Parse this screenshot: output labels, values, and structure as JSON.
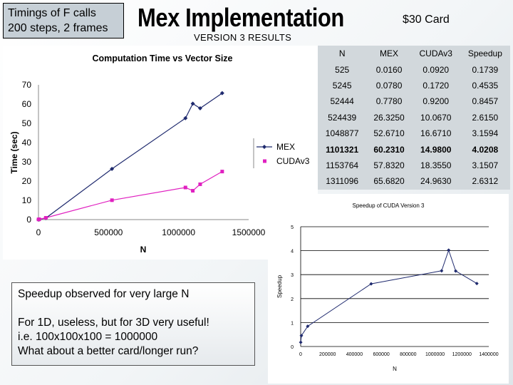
{
  "slide": {
    "top_box_line1": "Timings of F calls",
    "top_box_line2": "200 steps, 2 frames",
    "title": "Mex Implementation",
    "card_label": "$30 Card",
    "version_label": "VERSION 3 RESULTS",
    "note_line1": "Speedup observed for very large N",
    "note_line3": "For 1D, useless, but for 3D very useful!",
    "note_line4": "i.e. 100x100x100 = 1000000",
    "note_line5": "What about a better card/longer run?"
  },
  "table": {
    "headers": [
      "N",
      "MEX",
      "CUDAv3",
      "Speedup"
    ],
    "rows": [
      [
        "525",
        "0.0160",
        "0.0920",
        "0.1739"
      ],
      [
        "5245",
        "0.0780",
        "0.1720",
        "0.4535"
      ],
      [
        "52444",
        "0.7780",
        "0.9200",
        "0.8457"
      ],
      [
        "524439",
        "26.3250",
        "10.0670",
        "2.6150"
      ],
      [
        "1048877",
        "52.6710",
        "16.6710",
        "3.1594"
      ],
      [
        "1101321",
        "60.2310",
        "14.9800",
        "4.0208"
      ],
      [
        "1153764",
        "57.8320",
        "18.3550",
        "3.1507"
      ],
      [
        "1311096",
        "65.6820",
        "24.9630",
        "2.6312"
      ]
    ],
    "bold_row": 5
  },
  "chart_data": [
    {
      "type": "line",
      "title": "Computation Time vs Vector Size",
      "xlabel": "N",
      "ylabel": "Time (sec)",
      "xlim": [
        0,
        1500000
      ],
      "ylim": [
        0,
        70
      ],
      "xticks": [
        0,
        500000,
        1000000,
        1500000
      ],
      "xtick_labels": [
        "0",
        "500000",
        "1000000",
        "1500000"
      ],
      "yticks": [
        0,
        10,
        20,
        30,
        40,
        50,
        60,
        70
      ],
      "legend_position": "right",
      "series": [
        {
          "name": "MEX",
          "color": "#1f2a6e",
          "marker": "diamond",
          "x": [
            525,
            5245,
            52444,
            524439,
            1048877,
            1101321,
            1153764,
            1311096
          ],
          "y": [
            0.016,
            0.078,
            0.778,
            26.325,
            52.671,
            60.231,
            57.832,
            65.682
          ]
        },
        {
          "name": "CUDAv3",
          "color": "#e020c0",
          "marker": "square",
          "x": [
            525,
            5245,
            52444,
            524439,
            1048877,
            1101321,
            1153764,
            1311096
          ],
          "y": [
            0.092,
            0.172,
            0.92,
            10.067,
            16.671,
            14.98,
            18.355,
            24.963
          ]
        }
      ]
    },
    {
      "type": "line",
      "title": "Speedup of CUDA Version 3",
      "xlabel": "N",
      "ylabel": "Speedup",
      "xlim": [
        0,
        1400000
      ],
      "ylim": [
        0,
        5
      ],
      "xticks": [
        0,
        200000,
        400000,
        600000,
        800000,
        1000000,
        1200000,
        1400000
      ],
      "xtick_labels": [
        "0",
        "200000",
        "400000",
        "600000",
        "800000",
        "1000000",
        "1200000",
        "1400000"
      ],
      "yticks": [
        0,
        1,
        2,
        3,
        4,
        5
      ],
      "series": [
        {
          "name": "Speedup",
          "color": "#1f2a6e",
          "x": [
            525,
            5245,
            52444,
            524439,
            1048877,
            1101321,
            1153764,
            1311096
          ],
          "y": [
            0.1739,
            0.4535,
            0.8457,
            2.615,
            3.1594,
            4.0208,
            3.1507,
            2.6312
          ]
        }
      ]
    }
  ]
}
